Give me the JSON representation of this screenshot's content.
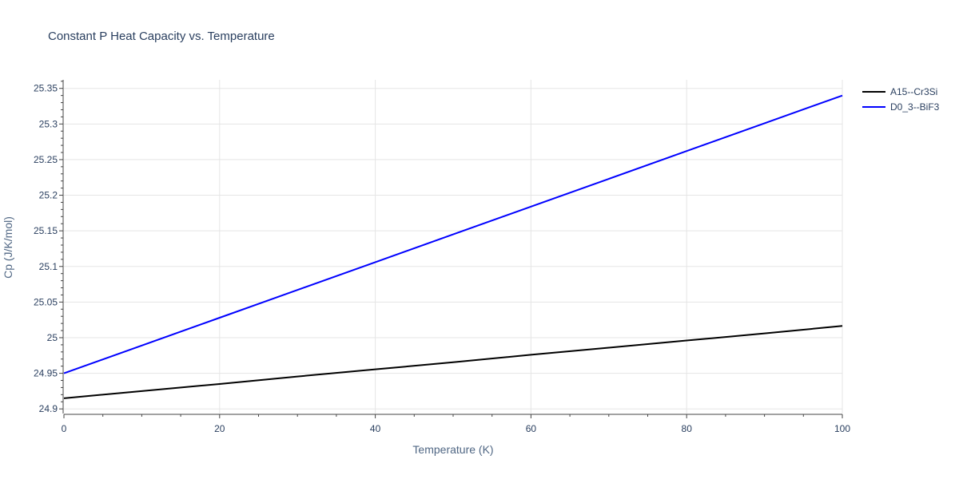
{
  "chart_data": {
    "type": "line",
    "title": "Constant P Heat Capacity vs. Temperature",
    "xlabel": "Temperature (K)",
    "ylabel": "Cp (J/K/mol)",
    "xlim": [
      0,
      100
    ],
    "ylim": [
      24.8935,
      25.362
    ],
    "x_ticks": [
      0,
      20,
      40,
      60,
      80,
      100
    ],
    "x_tick_labels": [
      "0",
      "20",
      "40",
      "60",
      "80",
      "100"
    ],
    "y_ticks": [
      24.9,
      24.95,
      25,
      25.05,
      25.1,
      25.15,
      25.2,
      25.25,
      25.3,
      25.35
    ],
    "y_tick_labels": [
      "24.9",
      "24.95",
      "25",
      "25.05",
      "25.1",
      "25.15",
      "25.2",
      "25.25",
      "25.3",
      "25.35"
    ],
    "grid": true,
    "legend_position": "top-right",
    "series": [
      {
        "name": "A15--Cr3Si",
        "color": "#000000",
        "x": [
          0,
          10,
          20,
          30,
          40,
          50,
          60,
          70,
          80,
          90,
          100
        ],
        "y": [
          24.915,
          24.925,
          24.935,
          24.9455,
          24.9555,
          24.9655,
          24.976,
          24.986,
          24.996,
          25.006,
          25.0165
        ]
      },
      {
        "name": "D0_3--BiF3",
        "color": "#0000ff",
        "x": [
          0,
          10,
          20,
          30,
          40,
          50,
          60,
          70,
          80,
          90,
          100
        ],
        "y": [
          24.95,
          24.989,
          25.028,
          25.067,
          25.106,
          25.145,
          25.184,
          25.223,
          25.262,
          25.301,
          25.34
        ]
      }
    ]
  }
}
